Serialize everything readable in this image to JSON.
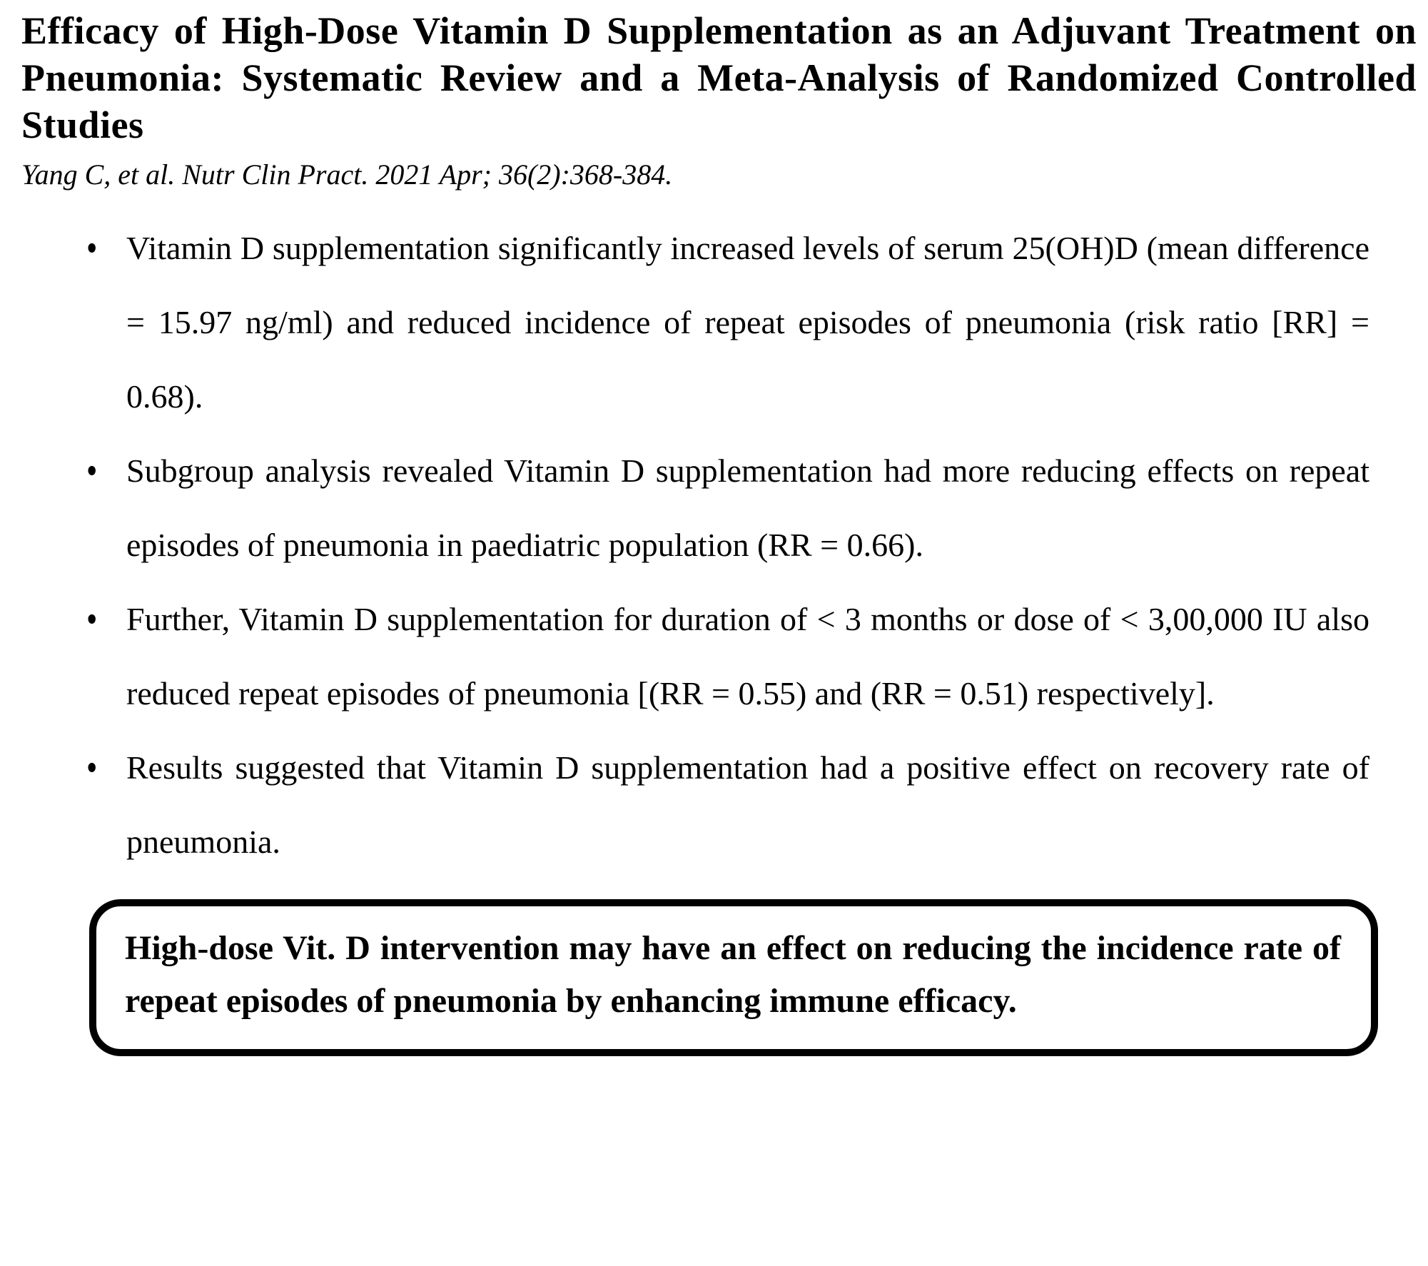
{
  "page": {
    "title": "Efficacy of High-Dose Vitamin D Supplementation as an Adjuvant Treatment on Pneumonia: Systematic Review and a Meta-Analysis of Randomized Controlled Studies",
    "citation": "Yang C, et al. Nutr Clin Pract. 2021 Apr; 36(2):368-384.",
    "bullet_glyph": "•",
    "bullets": [
      "Vitamin D supplementation significantly increased levels of serum 25(OH)D (mean difference = 15.97 ng/ml) and reduced incidence of repeat episodes of pneumonia (risk ratio [RR] = 0.68).",
      "Subgroup analysis revealed Vitamin D supplementation had more reducing effects on repeat episodes of pneumonia in paediatric population (RR = 0.66).",
      "Further, Vitamin D supplementation for duration of < 3 months or dose of < 3,00,000 IU also reduced repeat episodes of pneumonia [(RR = 0.55) and (RR = 0.51) respectively].",
      "Results suggested that Vitamin D supplementation had a positive effect on recovery rate of pneumonia."
    ],
    "summary_box": "High-dose Vit. D intervention may have an effect on reducing the incidence rate of repeat episodes of pneumonia by enhancing immune efficacy.",
    "colors": {
      "text": "#000000",
      "background": "#ffffff",
      "box_border": "#000000"
    }
  }
}
